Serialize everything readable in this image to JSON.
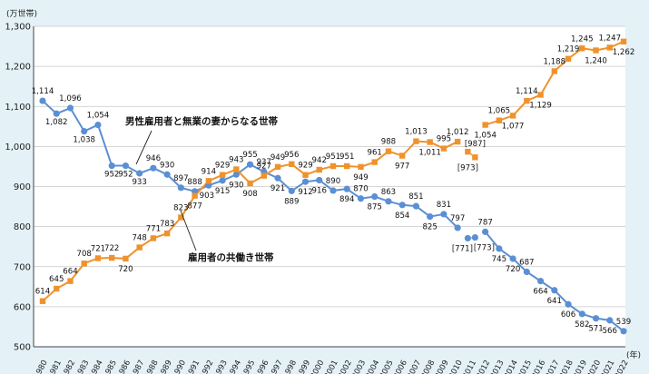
{
  "chart_data": {
    "type": "line",
    "y_unit": "(万世帯)",
    "x_unit": "(年)",
    "ylim": [
      500,
      1300
    ],
    "y_ticks": [
      "500",
      "600",
      "700",
      "800",
      "900",
      "1,000",
      "1,100",
      "1,200",
      "1,300"
    ],
    "x": [
      1980,
      1981,
      1982,
      1983,
      1984,
      1985,
      1986,
      1987,
      1988,
      1989,
      1990,
      1991,
      1992,
      1993,
      1994,
      1995,
      1996,
      1997,
      1998,
      1999,
      2000,
      2001,
      2002,
      2003,
      2004,
      2005,
      2006,
      2007,
      2008,
      2009,
      2010,
      2011,
      2012,
      2013,
      2014,
      2015,
      2016,
      2017,
      2018,
      2019,
      2020,
      2021,
      2022
    ],
    "x_labels": [
      "1980",
      "1981",
      "1982",
      "1983",
      "1984",
      "1985",
      "1986",
      "1987",
      "1988",
      "1989",
      "1990",
      "1991",
      "1992",
      "1993",
      "1994",
      "1995",
      "1996",
      "1997",
      "1998",
      "1999",
      "2000",
      "2001",
      "2002",
      "2003",
      "2004",
      "2005",
      "2006",
      "2007",
      "2008",
      "2009",
      "2010",
      "2011",
      "2012",
      "2013",
      "2014",
      "2015",
      "2016",
      "2017",
      "2018",
      "2019",
      "2020",
      "2021",
      "2022"
    ],
    "grid": true,
    "series": [
      {
        "name": "男性雇用者と無業の妻からなる世帯",
        "color": "#5b8fd4",
        "marker": "circle",
        "values": [
          1114,
          1082,
          1096,
          1038,
          1054,
          952,
          952,
          933,
          946,
          930,
          897,
          888,
          903,
          915,
          930,
          955,
          937,
          921,
          889,
          912,
          916,
          890,
          894,
          870,
          875,
          863,
          854,
          851,
          825,
          831,
          797,
          771,
          787,
          745,
          720,
          687,
          664,
          641,
          606,
          582,
          571,
          566,
          539
        ],
        "labels": [
          "1,114",
          "1,082",
          "1,096",
          "1,038",
          "1,054",
          "952",
          "952",
          "933",
          "946",
          "930",
          "897",
          "888",
          "903",
          "915",
          "930",
          "955",
          "937",
          "921",
          "889",
          "912",
          "916",
          "890",
          "894",
          "870",
          "875",
          "863",
          "854",
          "851",
          "825",
          "831",
          "797",
          "[771]",
          "787",
          "745",
          "720",
          "687",
          "664",
          "641",
          "606",
          "582",
          "571",
          "566",
          "539"
        ]
      },
      {
        "name": "雇用者の共働き世帯",
        "color": "#f0922b",
        "marker": "square",
        "values": [
          614,
          645,
          664,
          708,
          721,
          722,
          720,
          748,
          771,
          783,
          823,
          877,
          914,
          929,
          943,
          908,
          927,
          949,
          956,
          929,
          942,
          951,
          951,
          949,
          961,
          988,
          977,
          1013,
          1011,
          995,
          1012,
          987,
          1054,
          1065,
          1077,
          1114,
          1129,
          1188,
          1219,
          1245,
          1240,
          1247,
          1262
        ],
        "labels": [
          "614",
          "645",
          "664",
          "708",
          "721",
          "722",
          "720",
          "748",
          "771",
          "783",
          "823",
          "877",
          "914",
          "929",
          "943",
          "908",
          "927",
          "949",
          "956",
          "929",
          "942",
          "951",
          "951",
          "949",
          "961",
          "988",
          "977",
          "1,013",
          "1,011",
          "995",
          "1,012",
          "[987]",
          "1,054",
          "1,065",
          "1,077",
          "1,114",
          "1,129",
          "1,188",
          "1,219",
          "1,245",
          "1,240",
          "1,247",
          "1,262"
        ]
      }
    ],
    "gap_points": [
      {
        "series": 0,
        "label": "[773]",
        "value": 773
      },
      {
        "series": 1,
        "label": "[973]",
        "value": 973
      }
    ],
    "annotations": [
      {
        "text": "男性雇用者と無業の妻からなる世帯"
      },
      {
        "text": "雇用者の共働き世帯"
      }
    ]
  }
}
